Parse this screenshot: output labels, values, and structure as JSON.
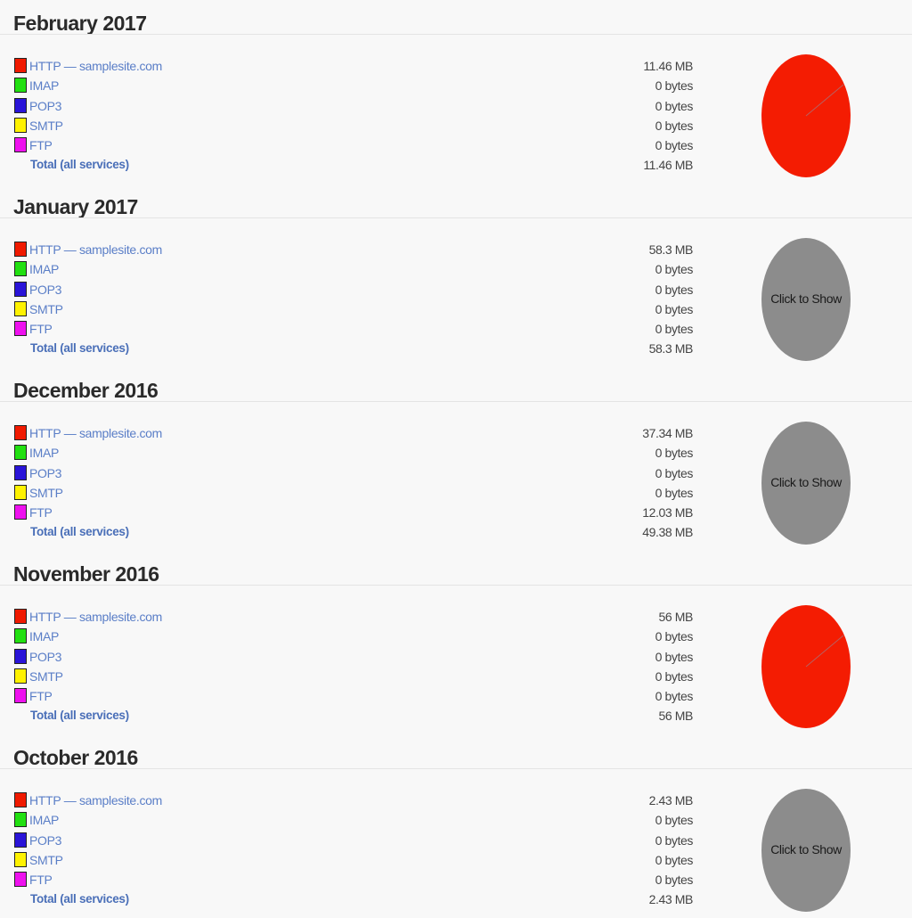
{
  "colors": {
    "http": "#f01a00",
    "imap": "#22e011",
    "pop3": "#2a14d8",
    "smtp": "#fff200",
    "ftp": "#ee11ee",
    "pie_red": "#f41c02",
    "pie_gray": "#8c8c8c"
  },
  "months": [
    {
      "title": "February 2017",
      "rows": [
        {
          "service": "HTTP — samplesite.com",
          "value": "11.46 MB"
        },
        {
          "service": "IMAP",
          "value": "0 bytes"
        },
        {
          "service": "POP3",
          "value": "0 bytes"
        },
        {
          "service": "SMTP",
          "value": "0 bytes"
        },
        {
          "service": "FTP",
          "value": "0 bytes"
        }
      ],
      "total_label": "Total (all services)",
      "total_value": "11.46 MB",
      "pie": {
        "state": "shown",
        "label": ""
      }
    },
    {
      "title": "January 2017",
      "rows": [
        {
          "service": "HTTP — samplesite.com",
          "value": "58.3 MB"
        },
        {
          "service": "IMAP",
          "value": "0 bytes"
        },
        {
          "service": "POP3",
          "value": "0 bytes"
        },
        {
          "service": "SMTP",
          "value": "0 bytes"
        },
        {
          "service": "FTP",
          "value": "0 bytes"
        }
      ],
      "total_label": "Total (all services)",
      "total_value": "58.3 MB",
      "pie": {
        "state": "hidden",
        "label": "Click to Show"
      }
    },
    {
      "title": "December 2016",
      "rows": [
        {
          "service": "HTTP — samplesite.com",
          "value": "37.34 MB"
        },
        {
          "service": "IMAP",
          "value": "0 bytes"
        },
        {
          "service": "POP3",
          "value": "0 bytes"
        },
        {
          "service": "SMTP",
          "value": "0 bytes"
        },
        {
          "service": "FTP",
          "value": "12.03 MB"
        }
      ],
      "total_label": "Total (all services)",
      "total_value": "49.38 MB",
      "pie": {
        "state": "hidden",
        "label": "Click to Show"
      }
    },
    {
      "title": "November 2016",
      "rows": [
        {
          "service": "HTTP — samplesite.com",
          "value": "56 MB"
        },
        {
          "service": "IMAP",
          "value": "0 bytes"
        },
        {
          "service": "POP3",
          "value": "0 bytes"
        },
        {
          "service": "SMTP",
          "value": "0 bytes"
        },
        {
          "service": "FTP",
          "value": "0 bytes"
        }
      ],
      "total_label": "Total (all services)",
      "total_value": "56 MB",
      "pie": {
        "state": "shown",
        "label": ""
      }
    },
    {
      "title": "October 2016",
      "rows": [
        {
          "service": "HTTP — samplesite.com",
          "value": "2.43 MB"
        },
        {
          "service": "IMAP",
          "value": "0 bytes"
        },
        {
          "service": "POP3",
          "value": "0 bytes"
        },
        {
          "service": "SMTP",
          "value": "0 bytes"
        },
        {
          "service": "FTP",
          "value": "0 bytes"
        }
      ],
      "total_label": "Total (all services)",
      "total_value": "2.43 MB",
      "pie": {
        "state": "hidden",
        "label": "Click to Show"
      }
    }
  ]
}
